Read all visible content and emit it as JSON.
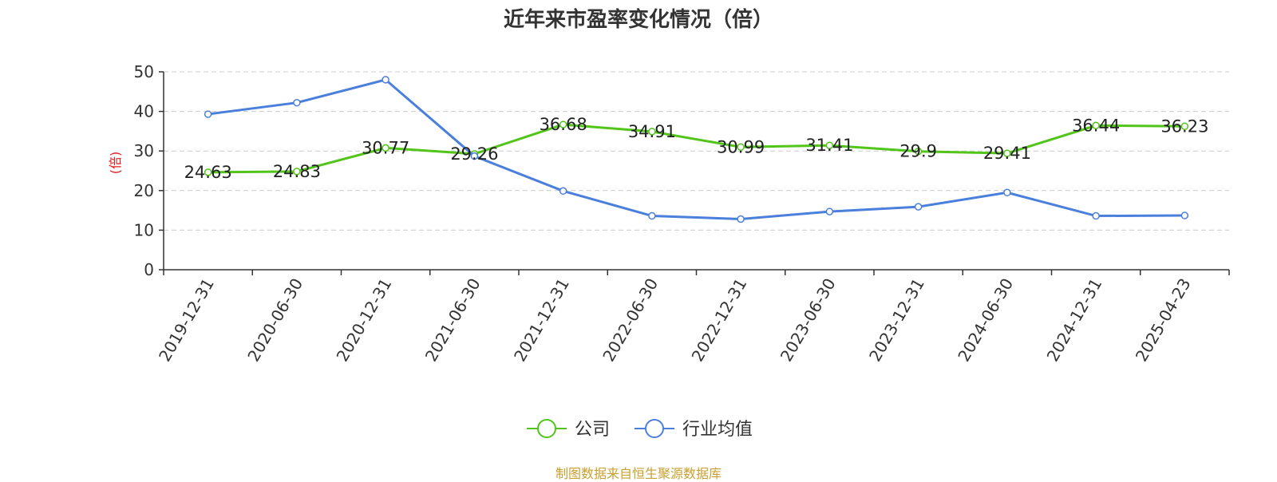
{
  "title": "近年来市盈率变化情况（倍）",
  "source": "制图数据来自恒生聚源数据库",
  "colors": {
    "company": "#52c41a",
    "industry": "#4a7fdc",
    "ylabel": "#e02020",
    "source": "#c8a030",
    "grid": "#cccccc",
    "axis": "#333333"
  },
  "chart_data": {
    "type": "line",
    "title": "近年来市盈率变化情况（倍）",
    "ylabel": "(倍)",
    "xlabel": "",
    "ylim": [
      0,
      50
    ],
    "yticks": [
      0,
      10,
      20,
      30,
      40,
      50
    ],
    "grid": true,
    "legend_position": "bottom-center",
    "categories": [
      "2019-12-31",
      "2020-06-30",
      "2020-12-31",
      "2021-06-30",
      "2021-12-31",
      "2022-06-30",
      "2022-12-31",
      "2023-06-30",
      "2023-12-31",
      "2024-06-30",
      "2024-12-31",
      "2025-04-23"
    ],
    "series": [
      {
        "name": "公司",
        "values": [
          24.63,
          24.83,
          30.77,
          29.26,
          36.68,
          34.91,
          30.99,
          31.41,
          29.9,
          29.41,
          36.44,
          36.23
        ],
        "data_labels": [
          "24.63",
          "24.83",
          "30.77",
          "29.26",
          "36.68",
          "34.91",
          "30.99",
          "31.41",
          "29.9",
          "29.41",
          "36.44",
          "36.23"
        ]
      },
      {
        "name": "行业均值",
        "values": [
          39.3,
          42.2,
          48.0,
          28.7,
          19.9,
          13.6,
          12.8,
          14.7,
          15.9,
          19.5,
          13.6,
          13.7
        ]
      }
    ]
  }
}
